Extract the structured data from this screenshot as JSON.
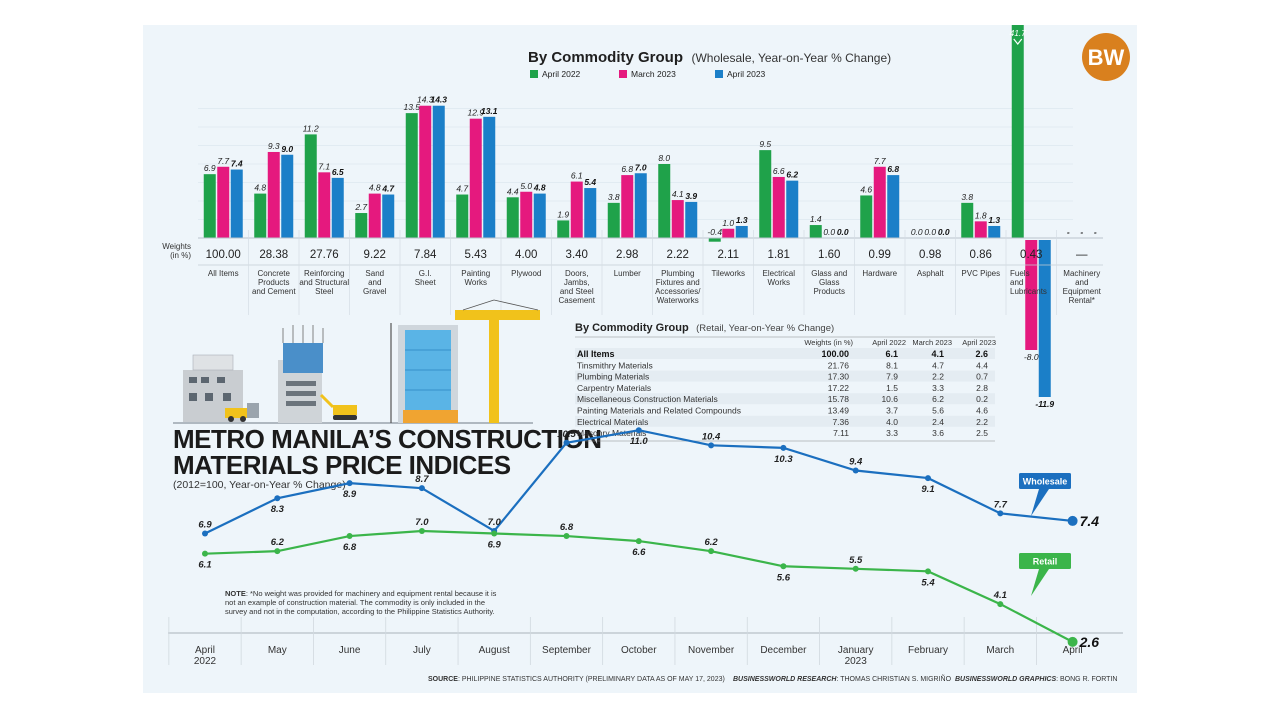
{
  "logo": {
    "text": "BW",
    "color": "#d9801e"
  },
  "colors": {
    "april2022": "#1fa24a",
    "march2023": "#e5197e",
    "april2023": "#1b7fc8",
    "wholesale": "#1b6fbf",
    "retail": "#3bb54a"
  },
  "chart_data": [
    {
      "type": "bar",
      "title": "By Commodity Group",
      "subtitle": "(Wholesale, Year-on-Year % Change)",
      "weights_label": [
        "Weights",
        "(in %)"
      ],
      "legend": [
        "April 2022",
        "March 2023",
        "April 2023"
      ],
      "legend_placement": "top-center",
      "categories": [
        {
          "name": "All Items",
          "lines": [
            "All Items"
          ],
          "weight": "100.00"
        },
        {
          "name": "Concrete Products and Cement",
          "lines": [
            "Concrete",
            "Products",
            "and Cement"
          ],
          "weight": "28.38"
        },
        {
          "name": "Reinforcing and Structural Steel",
          "lines": [
            "Reinforcing",
            "and Structural",
            "Steel"
          ],
          "weight": "27.76"
        },
        {
          "name": "Sand and Gravel",
          "lines": [
            "Sand",
            "and",
            "Gravel"
          ],
          "weight": "9.22"
        },
        {
          "name": "G.I. Sheet",
          "lines": [
            "G.I.",
            "Sheet"
          ],
          "weight": "7.84"
        },
        {
          "name": "Painting Works",
          "lines": [
            "Painting",
            "Works"
          ],
          "weight": "5.43"
        },
        {
          "name": "Plywood",
          "lines": [
            "Plywood"
          ],
          "weight": "4.00"
        },
        {
          "name": "Doors, Jambs, and Steel Casement",
          "lines": [
            "Doors,",
            "Jambs,",
            "and Steel",
            "Casement"
          ],
          "weight": "3.40"
        },
        {
          "name": "Lumber",
          "lines": [
            "Lumber"
          ],
          "weight": "2.98"
        },
        {
          "name": "Plumbing Fixtures and Accessories/Waterworks",
          "lines": [
            "Plumbing",
            "Fixtures and",
            "Accessories/",
            "Waterworks"
          ],
          "weight": "2.22"
        },
        {
          "name": "Tileworks",
          "lines": [
            "Tileworks"
          ],
          "weight": "2.11"
        },
        {
          "name": "Electrical Works",
          "lines": [
            "Electrical",
            "Works"
          ],
          "weight": "1.81"
        },
        {
          "name": "Glass and Glass Products",
          "lines": [
            "Glass and",
            "Glass",
            "Products"
          ],
          "weight": "1.60"
        },
        {
          "name": "Hardware",
          "lines": [
            "Hardware"
          ],
          "weight": "0.99"
        },
        {
          "name": "Asphalt",
          "lines": [
            "Asphalt"
          ],
          "weight": "0.98"
        },
        {
          "name": "PVC Pipes",
          "lines": [
            "PVC Pipes"
          ],
          "weight": "0.86"
        },
        {
          "name": "Fuels and Lubricants",
          "lines": [
            "Fuels",
            "and",
            "Lubricants"
          ],
          "weight": "0.43"
        },
        {
          "name": "Machinery and Equipment Rental*",
          "lines": [
            "Machinery",
            "and",
            "Equipment",
            "Rental*"
          ],
          "weight": "—"
        }
      ],
      "series": [
        {
          "name": "April 2022",
          "values": [
            6.9,
            4.8,
            11.2,
            2.7,
            13.5,
            4.7,
            4.4,
            1.9,
            3.8,
            8.0,
            -0.4,
            9.5,
            1.4,
            4.6,
            0.0,
            3.8,
            41.7,
            null
          ]
        },
        {
          "name": "March 2023",
          "values": [
            7.7,
            9.3,
            7.1,
            4.8,
            14.3,
            12.9,
            5.0,
            6.1,
            6.8,
            4.1,
            1.0,
            6.6,
            0.0,
            7.7,
            0.0,
            1.8,
            -8.0,
            null
          ]
        },
        {
          "name": "April 2023",
          "values": [
            7.4,
            9.0,
            6.5,
            4.7,
            14.3,
            13.1,
            4.8,
            5.4,
            7.0,
            3.9,
            1.3,
            6.2,
            0.0,
            6.8,
            0.0,
            1.3,
            -11.9,
            null
          ]
        }
      ],
      "missing_label": "-",
      "ylim": [
        -12,
        16
      ],
      "grid": true
    },
    {
      "type": "table",
      "title": "By Commodity Group",
      "subtitle": "(Retail, Year-on-Year % Change)",
      "columns": [
        "",
        "Weights (in %)",
        "April 2022",
        "March 2023",
        "April 2023"
      ],
      "rows": [
        [
          "All Items",
          "100.00",
          "6.1",
          "4.1",
          "2.6"
        ],
        [
          "Tinsmithry Materials",
          "21.76",
          "8.1",
          "4.7",
          "4.4"
        ],
        [
          "Plumbing Materials",
          "17.30",
          "7.9",
          "2.2",
          "0.7"
        ],
        [
          "Carpentry Materials",
          "17.22",
          "1.5",
          "3.3",
          "2.8"
        ],
        [
          "Miscellaneous Construction Materials",
          "15.78",
          "10.6",
          "6.2",
          "0.2"
        ],
        [
          "Painting Materials and Related Compounds",
          "13.49",
          "3.7",
          "5.6",
          "4.6"
        ],
        [
          "Electrical Materials",
          "7.36",
          "4.0",
          "2.4",
          "2.2"
        ],
        [
          "Masonry Materials",
          "7.11",
          "3.3",
          "3.6",
          "2.5"
        ]
      ]
    },
    {
      "type": "line",
      "title": "METRO MANILA’S CONSTRUCTION MATERIALS PRICE INDICES",
      "title_lines": [
        "METRO MANILA’S CONSTRUCTION",
        "MATERIALS PRICE INDICES"
      ],
      "subtitle": "(2012=100, Year-on-Year % Change)",
      "x": [
        [
          "April",
          "2022"
        ],
        [
          "May"
        ],
        [
          "June"
        ],
        [
          "July"
        ],
        [
          "August"
        ],
        [
          "September"
        ],
        [
          "October"
        ],
        [
          "November"
        ],
        [
          "December"
        ],
        [
          "January",
          "2023"
        ],
        [
          "February"
        ],
        [
          "March"
        ],
        [
          "April"
        ]
      ],
      "series": [
        {
          "name": "Wholesale",
          "values": [
            6.9,
            8.3,
            8.9,
            8.7,
            7.0,
            10.5,
            11.0,
            10.4,
            10.3,
            9.4,
            9.1,
            7.7,
            7.4
          ]
        },
        {
          "name": "Retail",
          "values": [
            6.1,
            6.2,
            6.8,
            7.0,
            6.9,
            6.8,
            6.6,
            6.2,
            5.6,
            5.5,
            5.4,
            4.1,
            2.6
          ]
        }
      ],
      "ylim": [
        2,
        12
      ],
      "grid": false
    }
  ],
  "note": [
    "NOTE: *No weight was provided for machinery and equipment rental because it is",
    "not an example of construction material. The commodity is only included in the",
    "survey and not in the computation, according to the Philippine Statistics Authority."
  ],
  "credits": {
    "source_label": "SOURCE",
    "source": ": PHILIPPINE STATISTICS AUTHORITY (PRELIMINARY DATA AS OF MAY 17, 2023)",
    "research_label": "BUSINESSWORLD RESEARCH",
    "research": ": THOMAS CHRISTIAN S. MIGRIÑO",
    "graphics_label": "BUSINESSWORLD GRAPHICS",
    "graphics": ": BONG R. FORTIN"
  }
}
